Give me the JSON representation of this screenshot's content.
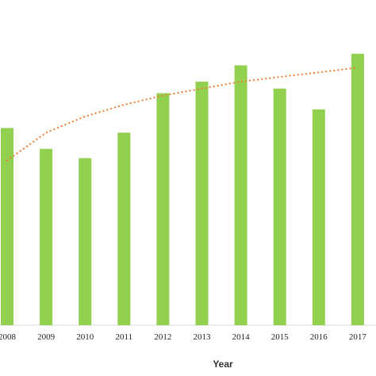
{
  "chart_data": {
    "type": "bar",
    "title": "",
    "xlabel": "Year",
    "ylabel": "",
    "categories": [
      "2008",
      "2009",
      "2010",
      "2011",
      "2012",
      "2013",
      "2014",
      "2015",
      "2016",
      "2017"
    ],
    "series": [
      {
        "values": [
          85,
          76,
          72,
          83,
          100,
          105,
          112,
          102,
          93,
          117
        ],
        "color": "#92d050"
      }
    ],
    "trendline": {
      "kind": "logarithmic",
      "style": "dotted",
      "color": "#ed7d31",
      "values": [
        71,
        83,
        90,
        95,
        99,
        102,
        105,
        107,
        109,
        111
      ]
    },
    "ylim": [
      0,
      120
    ],
    "grid": false,
    "legend": "none"
  }
}
